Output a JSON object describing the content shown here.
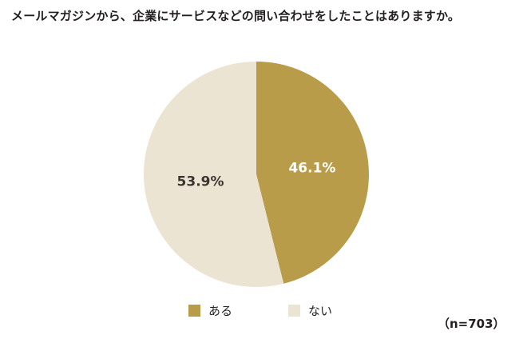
{
  "title": "メールマガジンから、企業にサービスなどの問い合わせをしたことはありますか。",
  "sample_size": "（n=703）",
  "colors": {
    "yes": "#b99c49",
    "no": "#ece4d3",
    "label_on_dark": "#ffffff",
    "label_on_light": "#3b3530"
  },
  "chart_data": {
    "type": "pie",
    "title": "メールマガジンから、企業にサービスなどの問い合わせをしたことはありますか。",
    "slices": [
      {
        "label": "ある",
        "value": 46.1,
        "display": "46.1%",
        "color": "#b99c49"
      },
      {
        "label": "ない",
        "value": 53.9,
        "display": "53.9%",
        "color": "#ece4d3"
      }
    ],
    "start": "12 o'clock",
    "direction": "clockwise",
    "legend_position": "bottom",
    "note": "（n=703）"
  },
  "legend": [
    {
      "label": "ある",
      "color": "#b99c49"
    },
    {
      "label": "ない",
      "color": "#ece4d3"
    }
  ]
}
